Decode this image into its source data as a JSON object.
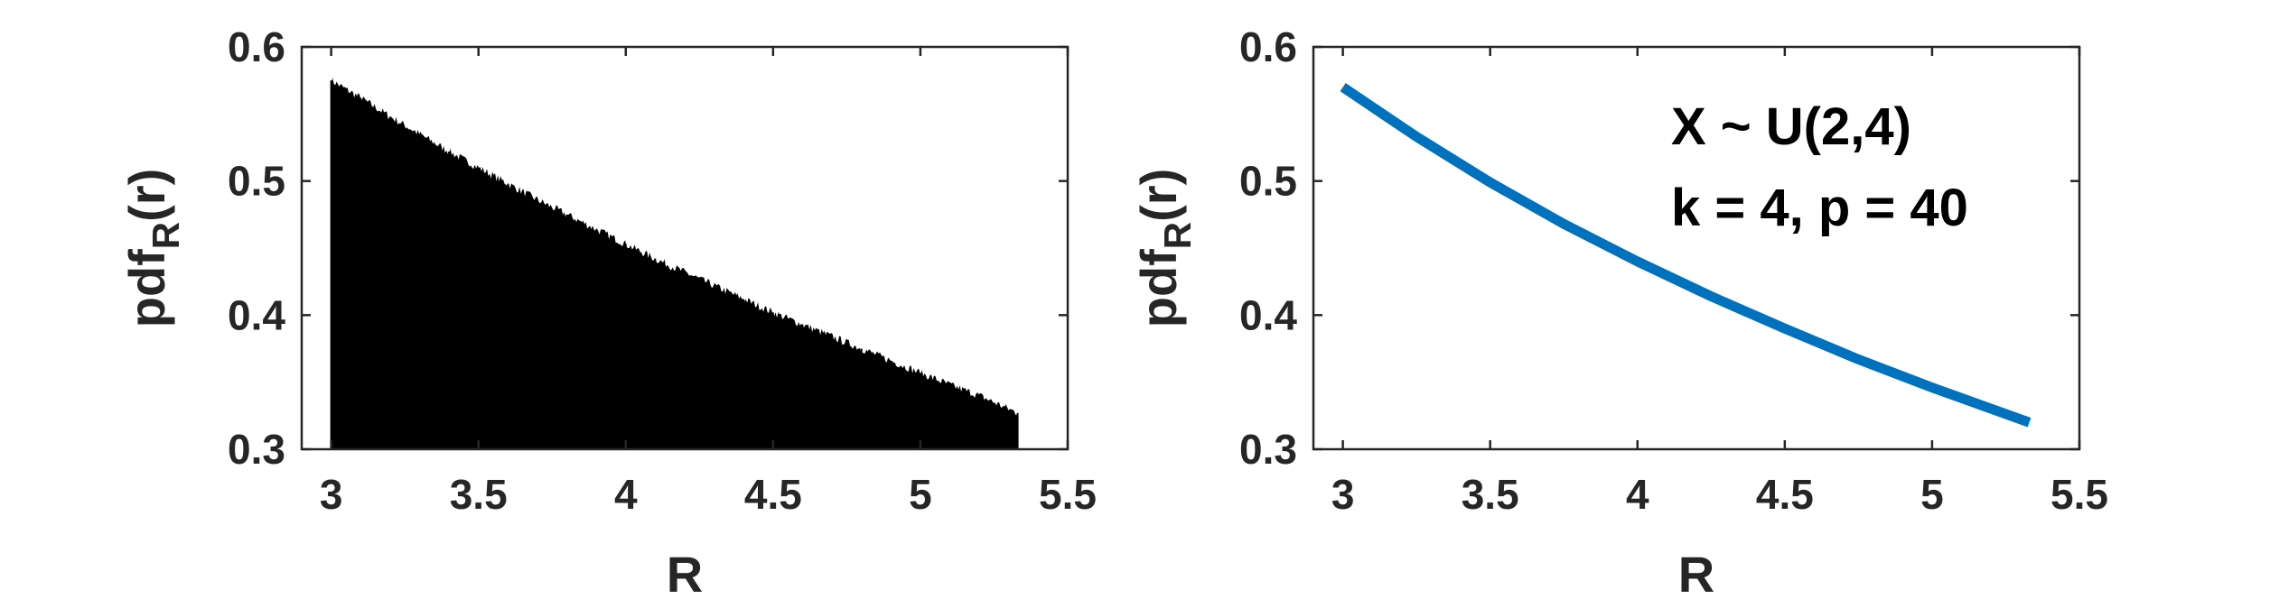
{
  "chart_data": [
    {
      "type": "histogram",
      "xlabel": "R",
      "ylabel_main": "pdf",
      "ylabel_sub": "R",
      "ylabel_arg": "(r)",
      "xlim": [
        2.9,
        5.5
      ],
      "ylim": [
        0.3,
        0.6
      ],
      "xticks": [
        "3",
        "3.5",
        "4",
        "4.5",
        "5",
        "5.5"
      ],
      "xtick_values": [
        3,
        3.5,
        4,
        4.5,
        5,
        5.5
      ],
      "yticks": [
        "0.3",
        "0.4",
        "0.5",
        "0.6"
      ],
      "ytick_values": [
        0.3,
        0.4,
        0.5,
        0.6
      ],
      "bar_color": "#000000",
      "x_range": [
        3.0,
        5.33
      ],
      "x": [
        3.0,
        3.1,
        3.2,
        3.3,
        3.4,
        3.5,
        3.6,
        3.7,
        3.8,
        3.9,
        4.0,
        4.1,
        4.2,
        4.3,
        4.4,
        4.5,
        4.6,
        4.7,
        4.8,
        4.9,
        5.0,
        5.1,
        5.2,
        5.33
      ],
      "values": [
        0.575,
        0.562,
        0.548,
        0.535,
        0.522,
        0.51,
        0.498,
        0.486,
        0.475,
        0.464,
        0.453,
        0.442,
        0.432,
        0.422,
        0.412,
        0.402,
        0.393,
        0.384,
        0.375,
        0.366,
        0.357,
        0.348,
        0.34,
        0.327
      ],
      "grid": false,
      "box": true
    },
    {
      "type": "line",
      "xlabel": "R",
      "ylabel_main": "pdf",
      "ylabel_sub": "R",
      "ylabel_arg": "(r)",
      "xlim": [
        2.9,
        5.5
      ],
      "ylim": [
        0.3,
        0.6
      ],
      "xticks": [
        "3",
        "3.5",
        "4",
        "4.5",
        "5",
        "5.5"
      ],
      "xtick_values": [
        3,
        3.5,
        4,
        4.5,
        5,
        5.5
      ],
      "yticks": [
        "0.3",
        "0.4",
        "0.5",
        "0.6"
      ],
      "ytick_values": [
        0.3,
        0.4,
        0.5,
        0.6
      ],
      "line_color": "#0072BD",
      "x": [
        3.0,
        3.25,
        3.5,
        3.75,
        4.0,
        4.25,
        4.5,
        4.75,
        5.0,
        5.33
      ],
      "values": [
        0.57,
        0.533,
        0.499,
        0.468,
        0.44,
        0.414,
        0.39,
        0.367,
        0.346,
        0.32
      ],
      "annotation": [
        "X ~ U(2,4)",
        "k = 4, p = 40"
      ],
      "grid": false,
      "box": true
    }
  ]
}
